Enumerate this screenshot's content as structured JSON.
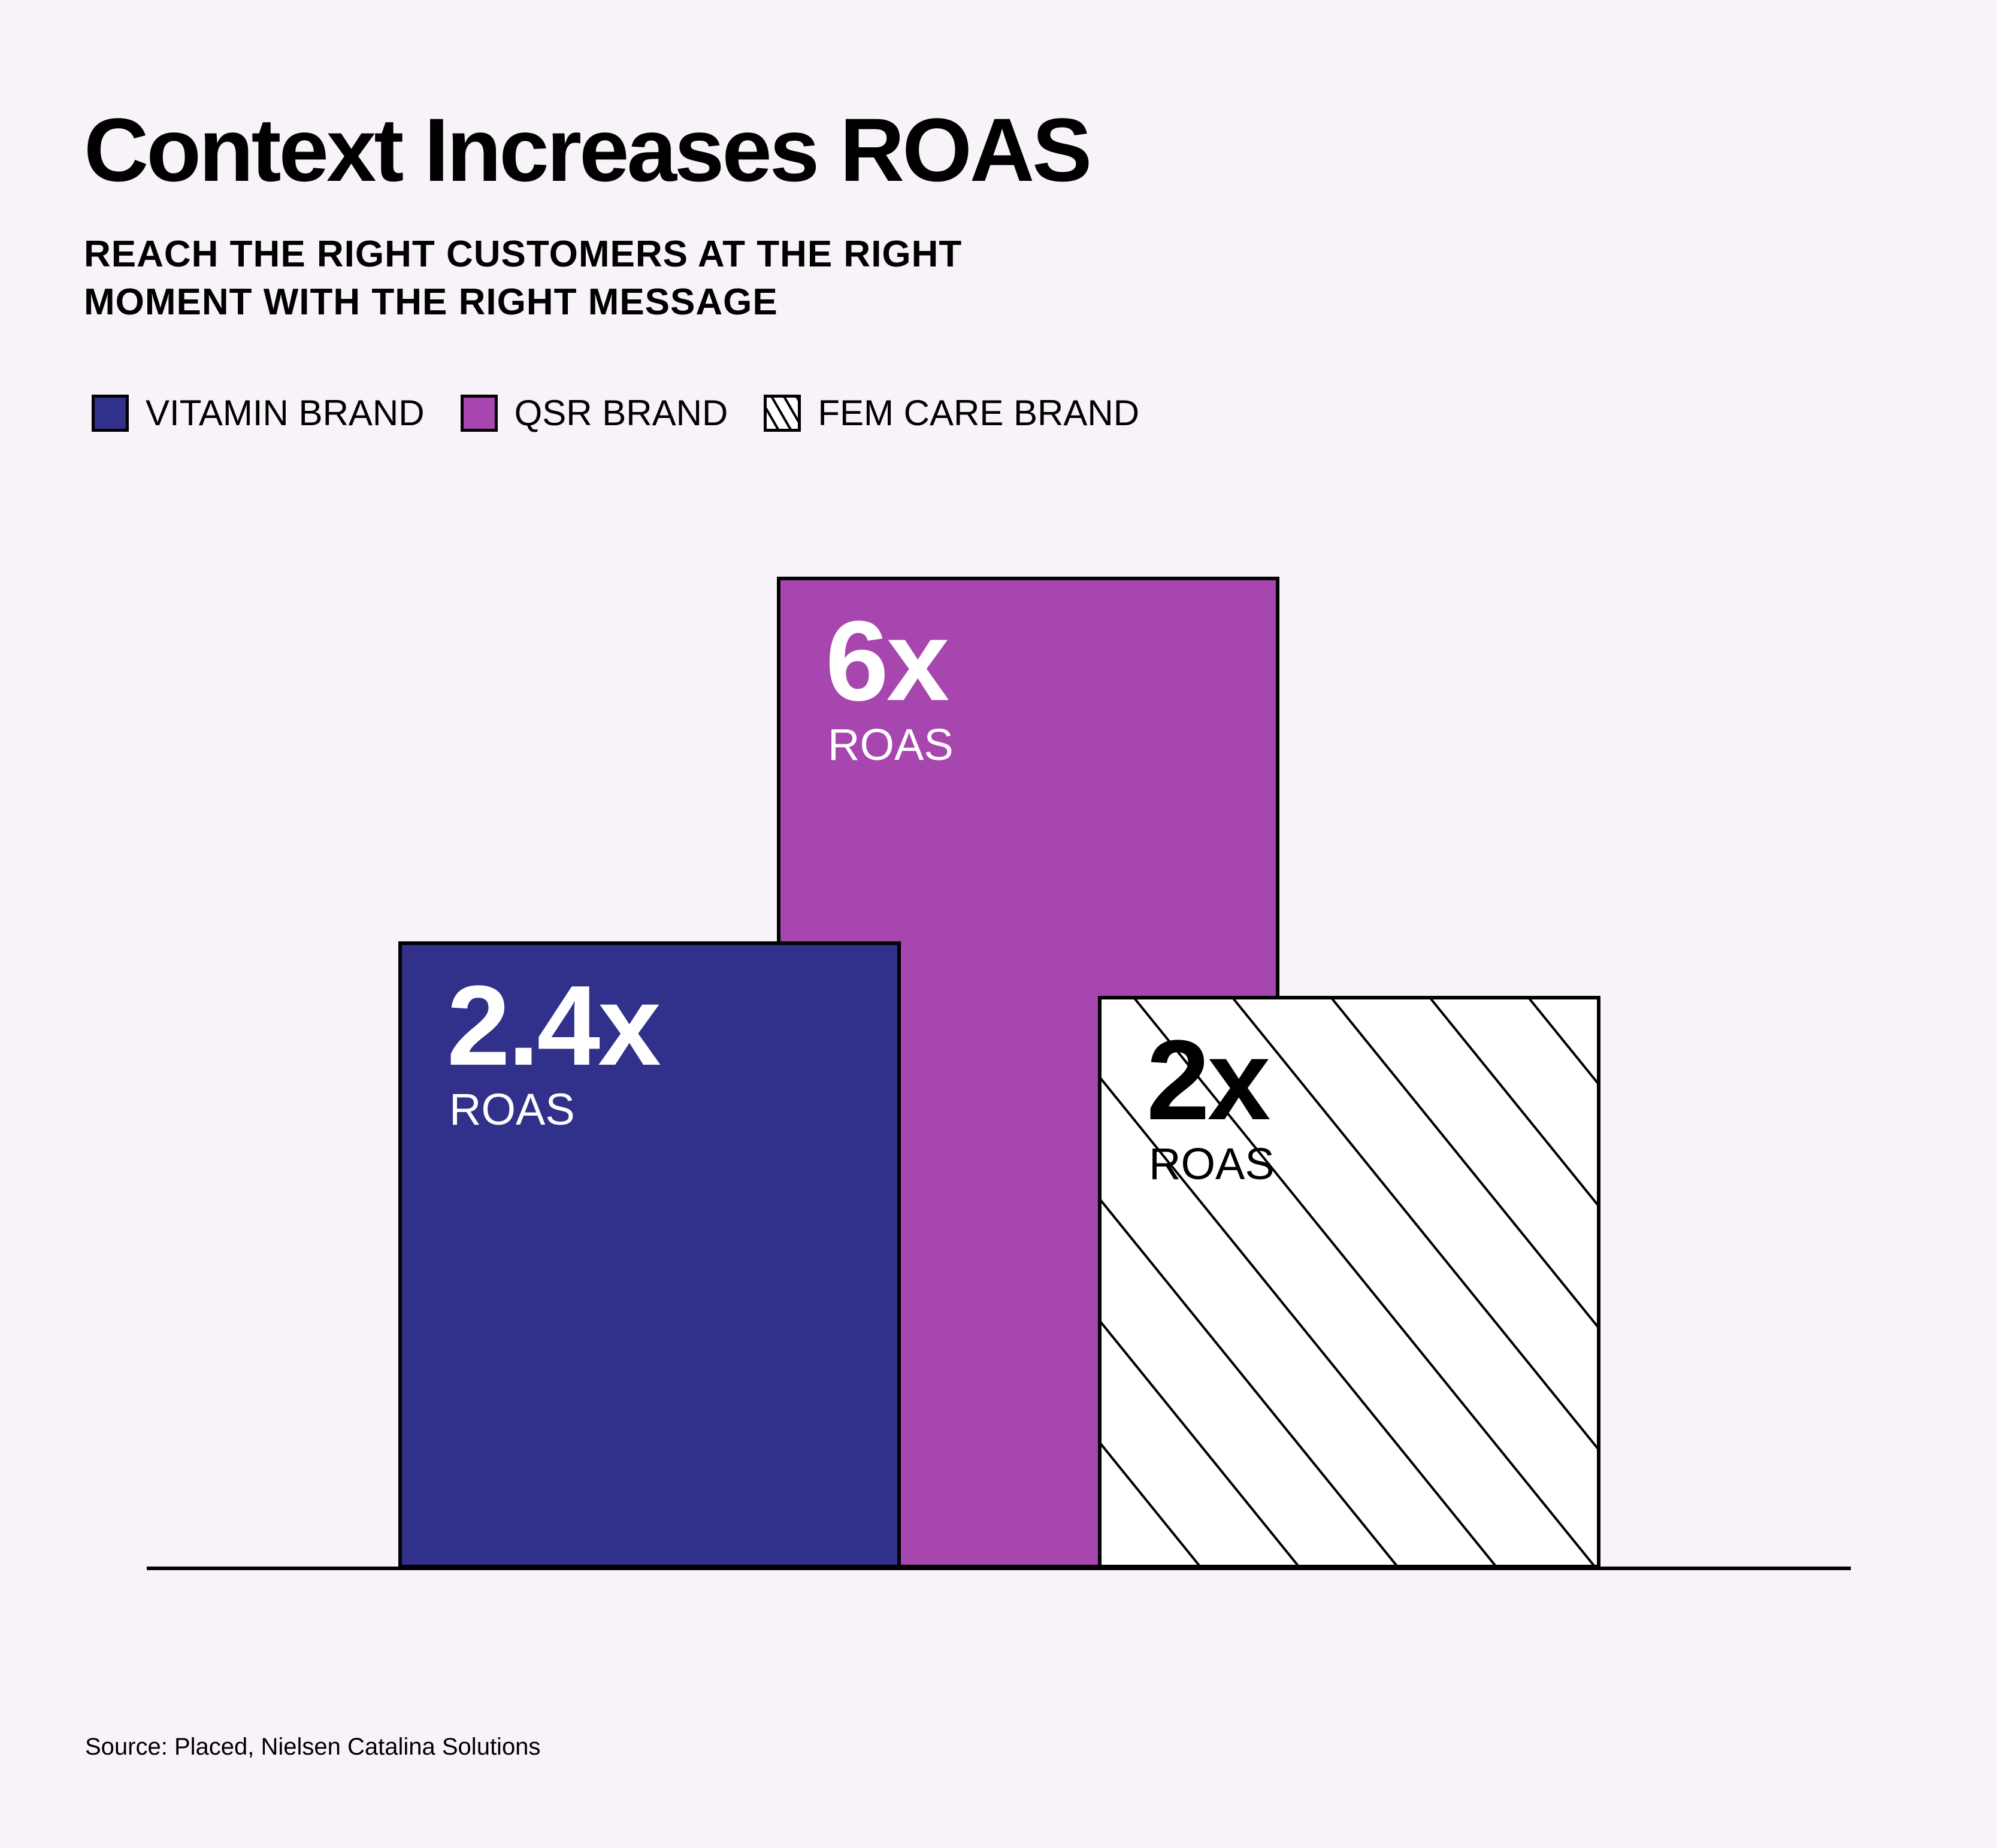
{
  "header": {
    "title": "Context Increases ROAS",
    "subtitle_lines": [
      "REACH THE RIGHT CUSTOMERS AT THE RIGHT",
      "MOMENT WITH THE RIGHT MESSAGE"
    ]
  },
  "chart_data": {
    "type": "bar",
    "title": "Context Increases ROAS",
    "subtitle": "REACH THE RIGHT CUSTOMERS AT THE RIGHT MOMENT WITH THE RIGHT MESSAGE",
    "categories": [
      "VITAMIN BRAND",
      "QSR BRAND",
      "FEM CARE BRAND"
    ],
    "values": [
      2.4,
      6,
      2
    ],
    "value_labels": [
      "2.4x",
      "6x",
      "2x"
    ],
    "unit_label": "ROAS",
    "colors": [
      "#31308a",
      "#a746ae",
      "hatched"
    ],
    "legend": [
      {
        "label": "VITAMIN BRAND",
        "color": "#31308a"
      },
      {
        "label": "QSR BRAND",
        "color": "#a746ae"
      },
      {
        "label": "FEM CARE BRAND",
        "color": "hatched"
      }
    ],
    "legend_position": "top-left",
    "xlabel": "",
    "ylabel": "",
    "grid": false
  },
  "footer": {
    "source": "Source: Placed, Nielsen Catalina Solutions"
  }
}
